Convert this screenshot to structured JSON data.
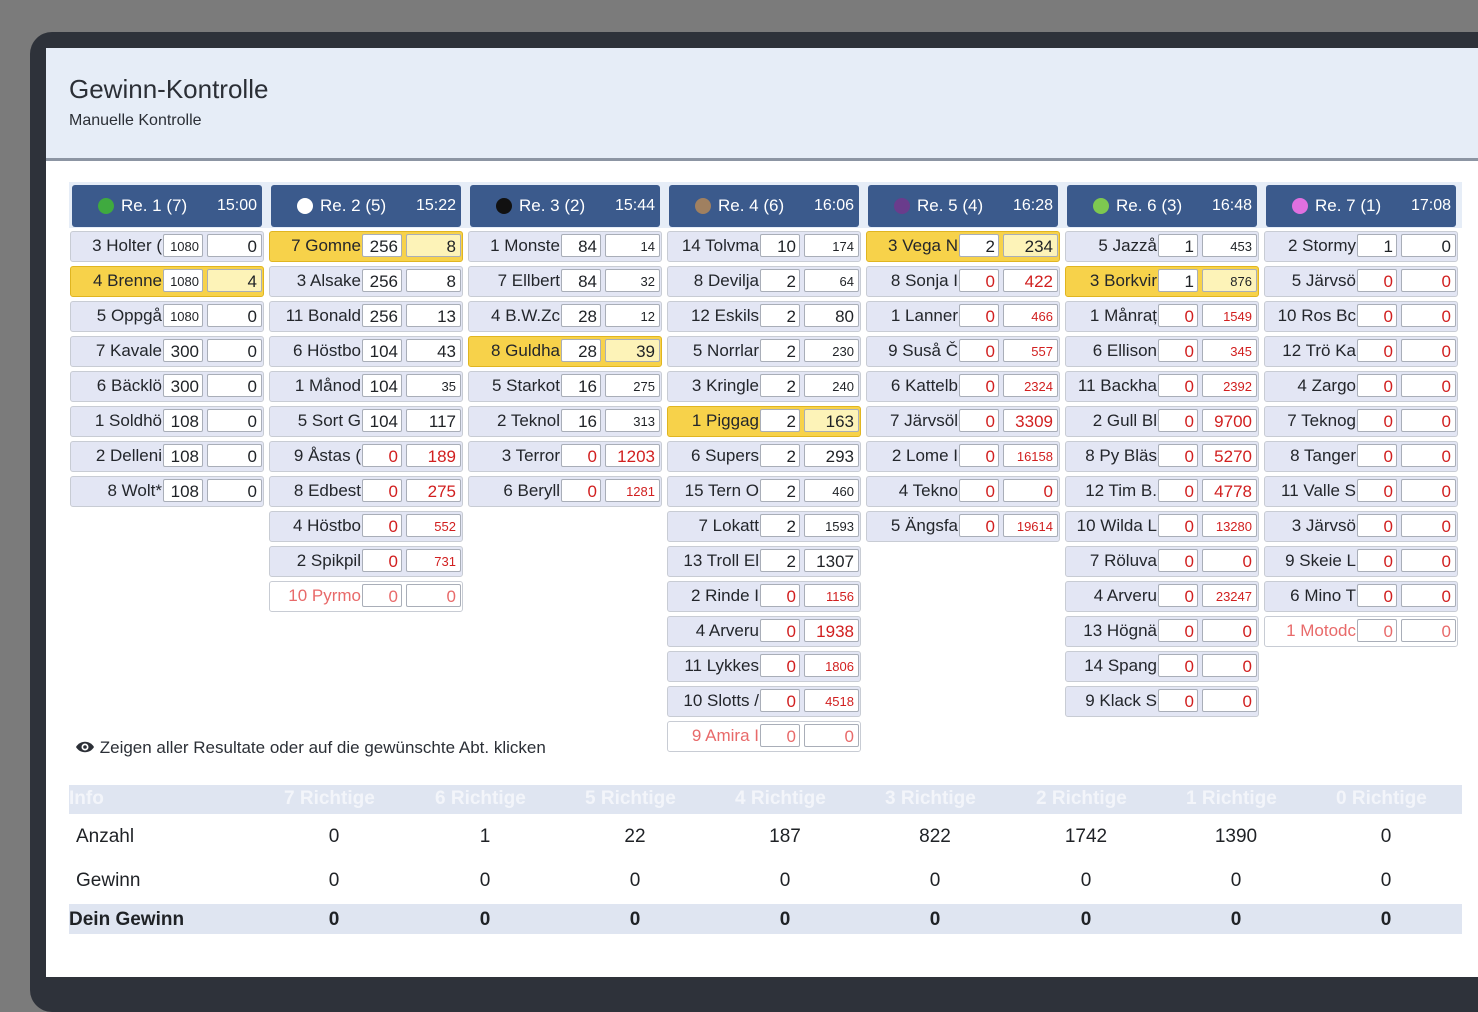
{
  "page": {
    "title": "Gewinn-Kontrolle",
    "subtitle": "Manuelle Kontrolle"
  },
  "races": [
    {
      "label": "Re. 1 (7)",
      "time": "15:00",
      "color": "#3faa3f",
      "rows": [
        {
          "horse": "3 Holter (",
          "v": "1080",
          "p": "0",
          "state": ""
        },
        {
          "horse": "4 Brenne",
          "v": "1080",
          "p": "4",
          "state": "hi"
        },
        {
          "horse": "5 Oppgå",
          "v": "1080",
          "p": "0",
          "state": ""
        },
        {
          "horse": "7 Kavale",
          "v": "300",
          "p": "0",
          "state": ""
        },
        {
          "horse": "6 Bäcklö",
          "v": "300",
          "p": "0",
          "state": ""
        },
        {
          "horse": "1 Soldhö",
          "v": "108",
          "p": "0",
          "state": ""
        },
        {
          "horse": "2 Delleni",
          "v": "108",
          "p": "0",
          "state": ""
        },
        {
          "horse": "8 Wolt*",
          "v": "108",
          "p": "0",
          "state": ""
        }
      ]
    },
    {
      "label": "Re. 2 (5)",
      "time": "15:22",
      "color": "#ffffff",
      "rows": [
        {
          "horse": "7 Gomne",
          "v": "256",
          "p": "8",
          "state": "hi"
        },
        {
          "horse": "3 Alsake",
          "v": "256",
          "p": "8",
          "state": ""
        },
        {
          "horse": "11 Bonald",
          "v": "256",
          "p": "13",
          "state": ""
        },
        {
          "horse": "6 Höstbo",
          "v": "104",
          "p": "43",
          "state": ""
        },
        {
          "horse": "1 Månod",
          "v": "104",
          "p": "35",
          "state": ""
        },
        {
          "horse": "5 Sort G",
          "v": "104",
          "p": "117",
          "state": ""
        },
        {
          "horse": "9 Åstas (",
          "v": "0",
          "p": "189",
          "state": ""
        },
        {
          "horse": "8 Edbest",
          "v": "0",
          "p": "275",
          "state": ""
        },
        {
          "horse": "4 Höstbo",
          "v": "0",
          "p": "552",
          "state": ""
        },
        {
          "horse": "2 Spikpil",
          "v": "0",
          "p": "731",
          "state": ""
        },
        {
          "horse": "10 Pyrmo",
          "v": "0",
          "p": "0",
          "state": "sc"
        }
      ]
    },
    {
      "label": "Re. 3 (2)",
      "time": "15:44",
      "color": "#111111",
      "rows": [
        {
          "horse": "1 Monste",
          "v": "84",
          "p": "14",
          "state": ""
        },
        {
          "horse": "7 Ellbert",
          "v": "84",
          "p": "32",
          "state": ""
        },
        {
          "horse": "4 B.W.Zc",
          "v": "28",
          "p": "12",
          "state": ""
        },
        {
          "horse": "8 Guldha",
          "v": "28",
          "p": "39",
          "state": "hi"
        },
        {
          "horse": "5 Starkot",
          "v": "16",
          "p": "275",
          "state": ""
        },
        {
          "horse": "2 Teknol",
          "v": "16",
          "p": "313",
          "state": ""
        },
        {
          "horse": "3 Terror",
          "v": "0",
          "p": "1203",
          "state": ""
        },
        {
          "horse": "6 Beryll",
          "v": "0",
          "p": "1281",
          "state": ""
        }
      ]
    },
    {
      "label": "Re. 4 (6)",
      "time": "16:06",
      "color": "#a08060",
      "rows": [
        {
          "horse": "14 Tolvma",
          "v": "10",
          "p": "174",
          "state": ""
        },
        {
          "horse": "8 Devilja",
          "v": "2",
          "p": "64",
          "state": ""
        },
        {
          "horse": "12 Eskils",
          "v": "2",
          "p": "80",
          "state": ""
        },
        {
          "horse": "5 Norrlar",
          "v": "2",
          "p": "230",
          "state": ""
        },
        {
          "horse": "3 Kringle",
          "v": "2",
          "p": "240",
          "state": ""
        },
        {
          "horse": "1 Piggag",
          "v": "2",
          "p": "163",
          "state": "hi"
        },
        {
          "horse": "6 Supers",
          "v": "2",
          "p": "293",
          "state": ""
        },
        {
          "horse": "15 Tern O",
          "v": "2",
          "p": "460",
          "state": ""
        },
        {
          "horse": "7 Lokatt",
          "v": "2",
          "p": "1593",
          "state": ""
        },
        {
          "horse": "13 Troll El",
          "v": "2",
          "p": "1307",
          "state": ""
        },
        {
          "horse": "2 Rinde I",
          "v": "0",
          "p": "1156",
          "state": ""
        },
        {
          "horse": "4 Arveru",
          "v": "0",
          "p": "1938",
          "state": ""
        },
        {
          "horse": "11 Lykkes",
          "v": "0",
          "p": "1806",
          "state": ""
        },
        {
          "horse": "10 Slotts /",
          "v": "0",
          "p": "4518",
          "state": ""
        },
        {
          "horse": "9 Amira I",
          "v": "0",
          "p": "0",
          "state": "sc"
        }
      ]
    },
    {
      "label": "Re. 5 (4)",
      "time": "16:28",
      "color": "#6a3c8c",
      "rows": [
        {
          "horse": "3 Vega N",
          "v": "2",
          "p": "234",
          "state": "hi"
        },
        {
          "horse": "8 Sonja I",
          "v": "0",
          "p": "422",
          "state": ""
        },
        {
          "horse": "1 Lanner",
          "v": "0",
          "p": "466",
          "state": ""
        },
        {
          "horse": "9 Suså Č",
          "v": "0",
          "p": "557",
          "state": ""
        },
        {
          "horse": "6 Kattelb",
          "v": "0",
          "p": "2324",
          "state": ""
        },
        {
          "horse": "7 Järvsöl",
          "v": "0",
          "p": "3309",
          "state": ""
        },
        {
          "horse": "2 Lome I",
          "v": "0",
          "p": "16158",
          "state": ""
        },
        {
          "horse": "4 Tekno",
          "v": "0",
          "p": "0",
          "state": ""
        },
        {
          "horse": "5 Ängsfa",
          "v": "0",
          "p": "19614",
          "state": ""
        }
      ]
    },
    {
      "label": "Re. 6 (3)",
      "time": "16:48",
      "color": "#7ec850",
      "rows": [
        {
          "horse": "5 Jazzå",
          "v": "1",
          "p": "453",
          "state": ""
        },
        {
          "horse": "3 Borkvir",
          "v": "1",
          "p": "876",
          "state": "hi"
        },
        {
          "horse": "1 Månraț",
          "v": "0",
          "p": "1549",
          "state": ""
        },
        {
          "horse": "6 Ellison",
          "v": "0",
          "p": "345",
          "state": ""
        },
        {
          "horse": "11 Backha",
          "v": "0",
          "p": "2392",
          "state": ""
        },
        {
          "horse": "2 Gull Bl",
          "v": "0",
          "p": "9700",
          "state": ""
        },
        {
          "horse": "8 Py Bläs",
          "v": "0",
          "p": "5270",
          "state": ""
        },
        {
          "horse": "12 Tim B.",
          "v": "0",
          "p": "4778",
          "state": ""
        },
        {
          "horse": "10 Wilda L",
          "v": "0",
          "p": "13280",
          "state": ""
        },
        {
          "horse": "7 Röluva",
          "v": "0",
          "p": "0",
          "state": ""
        },
        {
          "horse": "4 Arveru",
          "v": "0",
          "p": "23247",
          "state": ""
        },
        {
          "horse": "13 Högnä",
          "v": "0",
          "p": "0",
          "state": ""
        },
        {
          "horse": "14 Spang",
          "v": "0",
          "p": "0",
          "state": ""
        },
        {
          "horse": "9 Klack S",
          "v": "0",
          "p": "0",
          "state": ""
        }
      ]
    },
    {
      "label": "Re. 7 (1)",
      "time": "17:08",
      "color": "#e070e0",
      "rows": [
        {
          "horse": "2 Stormy",
          "v": "1",
          "p": "0",
          "state": ""
        },
        {
          "horse": "5 Järvsö",
          "v": "0",
          "p": "0",
          "state": ""
        },
        {
          "horse": "10 Ros Bc",
          "v": "0",
          "p": "0",
          "state": ""
        },
        {
          "horse": "12 Trö Ka",
          "v": "0",
          "p": "0",
          "state": ""
        },
        {
          "horse": "4 Zargo",
          "v": "0",
          "p": "0",
          "state": ""
        },
        {
          "horse": "7 Teknog",
          "v": "0",
          "p": "0",
          "state": ""
        },
        {
          "horse": "8 Tanger",
          "v": "0",
          "p": "0",
          "state": ""
        },
        {
          "horse": "11 Valle S",
          "v": "0",
          "p": "0",
          "state": ""
        },
        {
          "horse": "3 Järvsö",
          "v": "0",
          "p": "0",
          "state": ""
        },
        {
          "horse": "9 Skeie L",
          "v": "0",
          "p": "0",
          "state": ""
        },
        {
          "horse": "6 Mino T",
          "v": "0",
          "p": "0",
          "state": ""
        },
        {
          "horse": "1 Motodc",
          "v": "0",
          "p": "0",
          "state": "sc"
        }
      ]
    }
  ],
  "info_text": "Zeigen aller Resultate oder auf die gewünschte Abt. klicken",
  "table": {
    "headers": [
      "Info",
      "7 Richtige",
      "6 Richtige",
      "5 Richtige",
      "4 Richtige",
      "3 Richtige",
      "2 Richtige",
      "1 Richtige",
      "0 Richtige"
    ],
    "rows": [
      [
        "Anzahl",
        "0",
        "1",
        "22",
        "187",
        "822",
        "1742",
        "1390",
        "0"
      ],
      [
        "Gewinn",
        "0",
        "0",
        "0",
        "0",
        "0",
        "0",
        "0",
        "0"
      ],
      [
        "Dein Gewinn",
        "0",
        "0",
        "0",
        "0",
        "0",
        "0",
        "0",
        "0"
      ]
    ]
  }
}
